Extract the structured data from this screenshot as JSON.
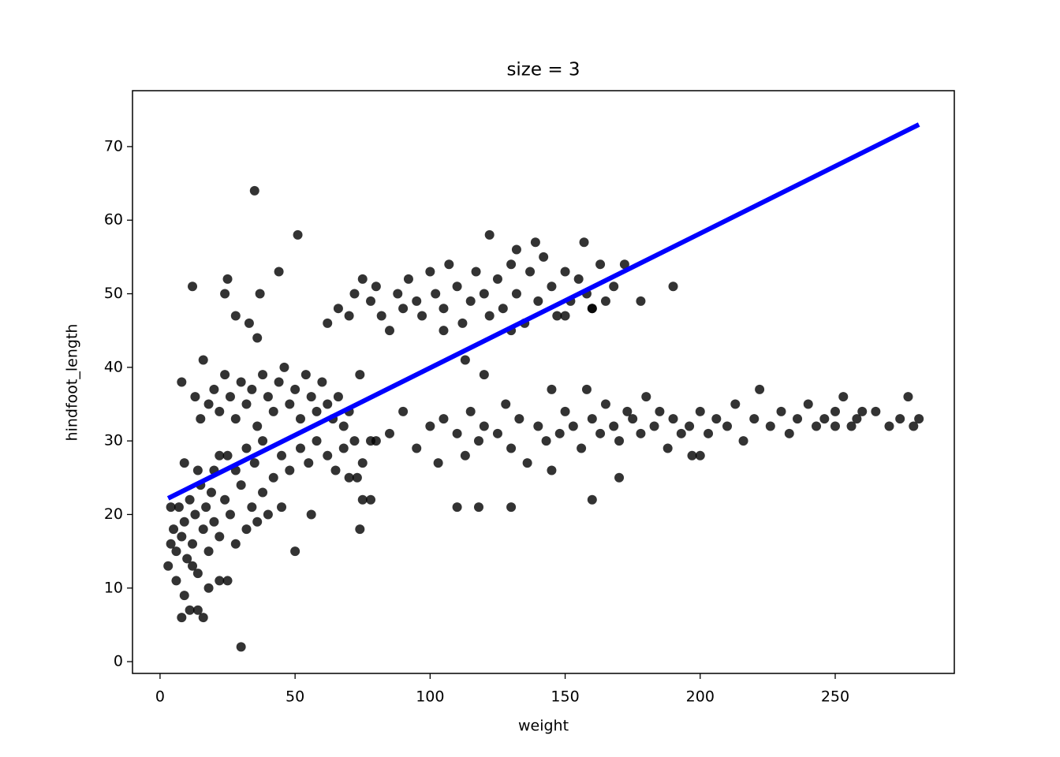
{
  "chart_data": {
    "type": "scatter",
    "title": "size = 3",
    "x_label": "weight",
    "y_label": "hindfoot_length",
    "x": [
      35,
      51,
      30,
      12,
      25,
      24,
      44,
      37,
      28,
      33,
      36,
      122,
      190,
      178,
      113,
      120,
      160,
      110,
      118,
      130,
      145,
      170,
      74,
      50,
      11,
      8,
      16,
      14,
      18,
      25,
      22,
      8,
      16,
      13,
      9,
      75,
      78,
      139,
      157,
      132,
      62,
      66,
      70,
      72,
      75,
      78,
      80,
      82,
      85,
      88,
      90,
      92,
      95,
      97,
      100,
      102,
      105,
      107,
      110,
      112,
      115,
      117,
      120,
      122,
      125,
      127,
      130,
      132,
      135,
      137,
      140,
      142,
      145,
      147,
      150,
      152,
      155,
      158,
      160,
      163,
      165,
      168,
      172,
      105,
      130,
      150,
      160,
      80,
      85,
      90,
      95,
      100,
      103,
      105,
      110,
      113,
      115,
      118,
      120,
      125,
      128,
      130,
      133,
      136,
      140,
      143,
      145,
      148,
      150,
      153,
      156,
      158,
      160,
      163,
      165,
      168,
      170,
      173,
      175,
      178,
      180,
      183,
      185,
      188,
      190,
      193,
      196,
      200,
      203,
      206,
      210,
      213,
      216,
      220,
      222,
      226,
      230,
      233,
      236,
      240,
      243,
      246,
      250,
      253,
      256,
      258,
      260,
      265,
      270,
      274,
      277,
      279,
      281,
      250,
      200,
      197,
      15,
      18,
      20,
      22,
      24,
      26,
      28,
      30,
      32,
      34,
      36,
      38,
      40,
      42,
      44,
      46,
      48,
      50,
      52,
      54,
      56,
      58,
      60,
      62,
      64,
      66,
      68,
      70,
      74,
      72,
      25,
      28,
      32,
      35,
      38,
      42,
      45,
      48,
      52,
      55,
      58,
      62,
      65,
      68,
      70,
      75,
      78,
      73,
      56,
      45,
      40,
      3,
      4,
      5,
      6,
      7,
      8,
      9,
      10,
      11,
      12,
      13,
      14,
      15,
      16,
      17,
      18,
      19,
      20,
      22,
      24,
      26,
      28,
      30,
      32,
      34,
      36,
      38,
      6,
      9,
      12,
      4,
      20,
      22,
      14
    ],
    "values": [
      64,
      58,
      2,
      51,
      52,
      50,
      53,
      50,
      47,
      46,
      44,
      58,
      51,
      49,
      41,
      39,
      22,
      21,
      21,
      21,
      26,
      25,
      18,
      15,
      7,
      6,
      6,
      7,
      10,
      11,
      11,
      38,
      41,
      36,
      27,
      22,
      22,
      57,
      57,
      56,
      46,
      48,
      47,
      50,
      52,
      49,
      51,
      47,
      45,
      50,
      48,
      52,
      49,
      47,
      53,
      50,
      48,
      54,
      51,
      46,
      49,
      53,
      50,
      47,
      52,
      48,
      54,
      50,
      46,
      53,
      49,
      55,
      51,
      47,
      53,
      49,
      52,
      50,
      48,
      54,
      49,
      51,
      54,
      45,
      45,
      47,
      48,
      30,
      31,
      34,
      29,
      32,
      27,
      33,
      31,
      28,
      34,
      30,
      32,
      31,
      35,
      29,
      33,
      27,
      32,
      30,
      37,
      31,
      34,
      32,
      29,
      37,
      33,
      31,
      35,
      32,
      30,
      34,
      33,
      31,
      36,
      32,
      34,
      29,
      33,
      31,
      32,
      34,
      31,
      33,
      32,
      35,
      30,
      33,
      37,
      32,
      34,
      31,
      33,
      35,
      32,
      33,
      34,
      36,
      32,
      33,
      34,
      34,
      32,
      33,
      36,
      32,
      33,
      32,
      28,
      28,
      33,
      35,
      37,
      34,
      39,
      36,
      33,
      38,
      35,
      37,
      32,
      39,
      36,
      34,
      38,
      40,
      35,
      37,
      33,
      39,
      36,
      34,
      38,
      35,
      33,
      36,
      32,
      34,
      39,
      30,
      28,
      26,
      29,
      27,
      30,
      25,
      28,
      26,
      29,
      27,
      30,
      28,
      26,
      29,
      25,
      27,
      30,
      25,
      20,
      21,
      20,
      13,
      16,
      18,
      15,
      21,
      17,
      19,
      14,
      22,
      16,
      20,
      12,
      24,
      18,
      21,
      15,
      23,
      19,
      17,
      22,
      20,
      16,
      24,
      18,
      21,
      19,
      23,
      11,
      9,
      13,
      21,
      26,
      28,
      26
    ],
    "color": "#000000",
    "regression": {
      "x": [
        3,
        281
      ],
      "values": [
        22.2,
        73
      ],
      "color": "#0000ff"
    },
    "xlim": [
      -10.2,
      294.1
    ],
    "ylim": [
      -1.6,
      77.6
    ],
    "xticks": [
      0,
      50,
      100,
      150,
      200,
      250
    ],
    "yticks": [
      0,
      10,
      20,
      30,
      40,
      50,
      60,
      70
    ]
  }
}
